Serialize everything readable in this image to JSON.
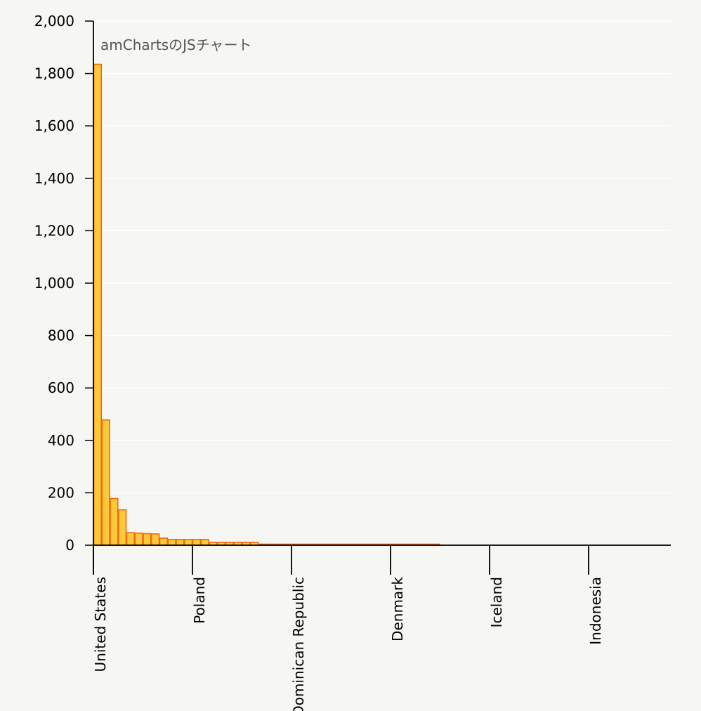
{
  "chart_data": {
    "type": "bar",
    "title": "",
    "xlabel": "",
    "ylabel": "",
    "ylim": [
      0,
      2000
    ],
    "yticks": [
      "0",
      "200",
      "400",
      "600",
      "800",
      "1,000",
      "1,200",
      "1,400",
      "1,600",
      "1,800",
      "2,000"
    ],
    "grid": true,
    "bar_fill": "#fcc93a",
    "bar_stroke": "#f06a14",
    "axis_color": "#000000",
    "category_tick_labels": [
      "United States",
      "Poland",
      "Dominican Republic",
      "Denmark",
      "Iceland",
      "Indonesia"
    ],
    "category_count": 60,
    "label_every": 12,
    "values": [
      1835,
      478,
      178,
      135,
      48,
      46,
      44,
      43,
      27,
      22,
      22,
      22,
      22,
      22,
      11,
      11,
      11,
      11,
      11,
      11,
      4,
      4,
      4,
      4,
      4,
      4,
      4,
      4,
      4,
      4,
      4,
      4,
      4,
      4,
      4,
      4,
      4,
      4,
      4,
      4,
      4,
      4,
      0,
      0,
      0,
      0,
      0,
      0,
      0,
      0,
      0,
      0,
      0,
      0,
      0,
      0,
      0,
      0,
      0,
      0
    ],
    "annotation": "amChartsのJSチャート"
  }
}
